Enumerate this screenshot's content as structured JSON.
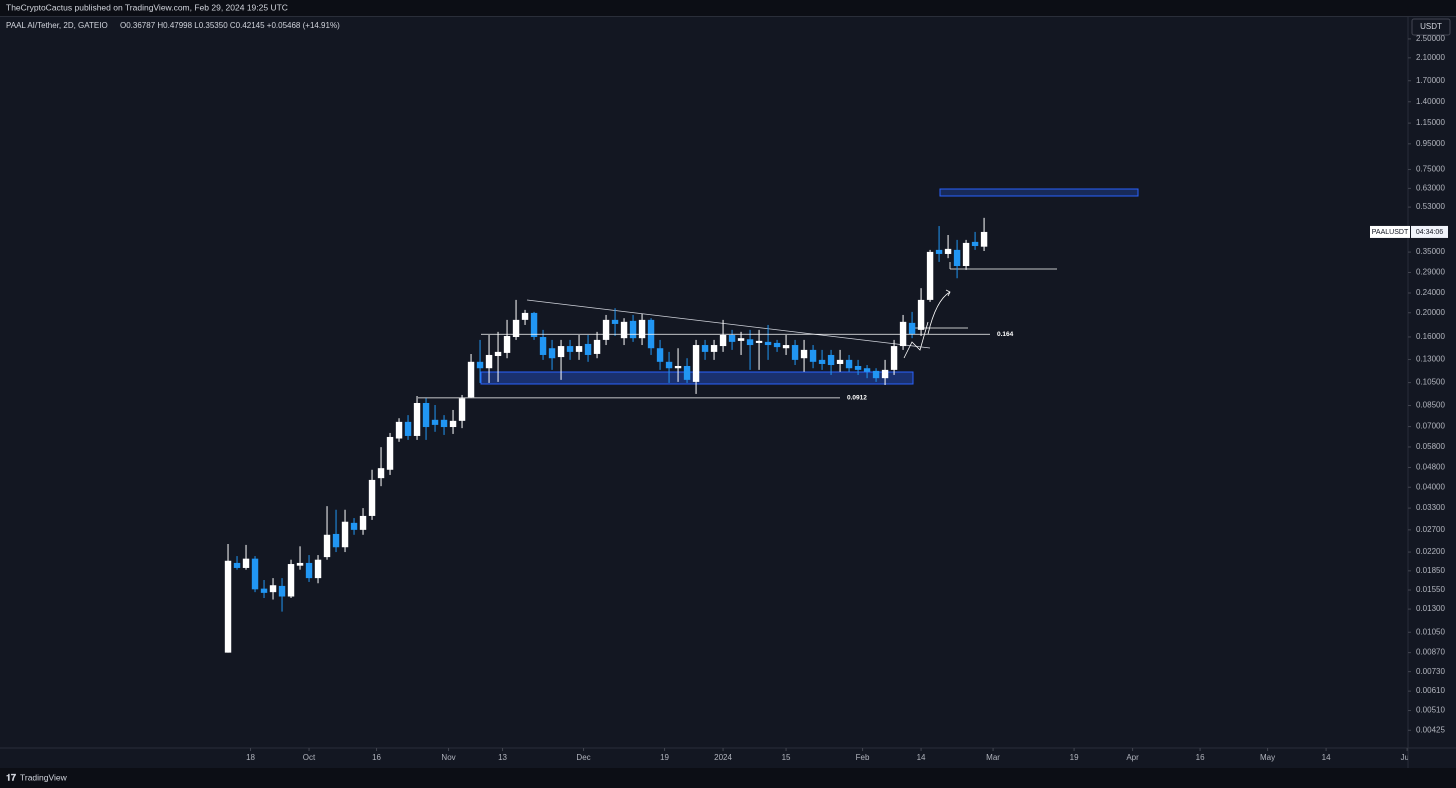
{
  "header": {
    "published": "TheCryptoCactus published on TradingView.com, Feb 29, 2024 19:25 UTC",
    "symbol": "PAAL AI/Tether, 2D, GATEIO",
    "ohlc": "O0.36787 H0.47998 L0.35350 C0.42145 +0.05468 (+14.91%)",
    "currency": "USDT",
    "brand": "TradingView"
  },
  "chart_data": {
    "type": "candlestick",
    "log_scale": true,
    "grid": false,
    "up_color": "#ffffff",
    "down_color": "#2196f3",
    "last_price_symbol": "PAALUSDT",
    "countdown": "04:34:06",
    "levels": [
      {
        "value": 0.164,
        "label": "0.164"
      },
      {
        "value": 0.0912,
        "label": "0.0912"
      }
    ],
    "xlim": [
      -38.67,
      274.2
    ],
    "xticks": [
      {
        "value": 17,
        "label": "18"
      },
      {
        "value": 30,
        "label": "Oct"
      },
      {
        "value": 45,
        "label": "16"
      },
      {
        "value": 61,
        "label": "Nov"
      },
      {
        "value": 73,
        "label": "13"
      },
      {
        "value": 91,
        "label": "Dec"
      },
      {
        "value": 109,
        "label": "19"
      },
      {
        "value": 122,
        "label": "2024"
      },
      {
        "value": 136,
        "label": "15"
      },
      {
        "value": 153,
        "label": "Feb"
      },
      {
        "value": 166,
        "label": "14"
      },
      {
        "value": 182,
        "label": "Mar"
      },
      {
        "value": 200,
        "label": "19"
      },
      {
        "value": 213,
        "label": "Apr"
      },
      {
        "value": 228,
        "label": "16"
      },
      {
        "value": 243,
        "label": "May"
      },
      {
        "value": 256,
        "label": "14"
      },
      {
        "value": 274,
        "label": "Jun"
      }
    ],
    "ylim": [
      0.00361,
      3.58
    ],
    "yticks": [
      {
        "value": 2.5,
        "label": "2.50000"
      },
      {
        "value": 2.1,
        "label": "2.10000"
      },
      {
        "value": 1.7,
        "label": "1.70000"
      },
      {
        "value": 1.4,
        "label": "1.40000"
      },
      {
        "value": 1.15,
        "label": "1.15000"
      },
      {
        "value": 0.95,
        "label": "0.95000"
      },
      {
        "value": 0.75,
        "label": "0.75000"
      },
      {
        "value": 0.63,
        "label": "0.63000"
      },
      {
        "value": 0.53,
        "label": "0.53000"
      },
      {
        "value": 0.35,
        "label": "0.35000"
      },
      {
        "value": 0.29,
        "label": "0.29000"
      },
      {
        "value": 0.24,
        "label": "0.24000"
      },
      {
        "value": 0.2,
        "label": "0.20000"
      },
      {
        "value": 0.16,
        "label": "0.16000"
      },
      {
        "value": 0.13,
        "label": "0.13000"
      },
      {
        "value": 0.105,
        "label": "0.10500"
      },
      {
        "value": 0.085,
        "label": "0.08500"
      },
      {
        "value": 0.07,
        "label": "0.07000"
      },
      {
        "value": 0.058,
        "label": "0.05800"
      },
      {
        "value": 0.048,
        "label": "0.04800"
      },
      {
        "value": 0.04,
        "label": "0.04000"
      },
      {
        "value": 0.033,
        "label": "0.03300"
      },
      {
        "value": 0.027,
        "label": "0.02700"
      },
      {
        "value": 0.022,
        "label": "0.02200"
      },
      {
        "value": 0.0185,
        "label": "0.01850"
      },
      {
        "value": 0.0155,
        "label": "0.01550"
      },
      {
        "value": 0.013,
        "label": "0.01300"
      },
      {
        "value": 0.0105,
        "label": "0.01050"
      },
      {
        "value": 0.0087,
        "label": "0.00870"
      },
      {
        "value": 0.0073,
        "label": "0.00730"
      },
      {
        "value": 0.0061,
        "label": "0.00610"
      },
      {
        "value": 0.0051,
        "label": "0.00510"
      },
      {
        "value": 0.00425,
        "label": "0.00425"
      }
    ],
    "x": [
      12,
      14,
      16,
      18,
      20,
      22,
      24,
      26,
      28,
      30,
      32,
      34,
      36,
      38,
      40,
      42,
      44,
      46,
      48,
      50,
      52,
      54,
      56,
      58,
      60,
      62,
      64,
      66,
      68,
      70,
      72,
      74,
      76,
      78,
      80,
      82,
      84,
      86,
      88,
      90,
      92,
      94,
      96,
      98,
      100,
      102,
      104,
      106,
      108,
      110,
      112,
      114,
      116,
      118,
      120,
      122,
      124,
      126,
      128,
      130,
      132,
      134,
      136,
      138,
      140,
      142,
      144,
      146,
      148,
      150,
      152,
      154,
      156,
      158,
      160,
      162,
      164,
      166,
      168,
      170,
      172,
      174,
      176,
      178,
      180
    ],
    "open": [
      0.0087,
      0.0199,
      0.019,
      0.0207,
      0.0157,
      0.0152,
      0.0161,
      0.0146,
      0.0194,
      0.0199,
      0.0173,
      0.021,
      0.026,
      0.023,
      0.0288,
      0.027,
      0.0307,
      0.0435,
      0.047,
      0.0627,
      0.0731,
      0.0642,
      0.087,
      0.0745,
      0.0745,
      0.0697,
      0.0738,
      0.0917,
      0.1272,
      0.1199,
      0.1342,
      0.1381,
      0.1599,
      0.1873,
      0.1997,
      0.1599,
      0.1442,
      0.1329,
      0.1471,
      0.1394,
      0.15,
      0.1368,
      0.1557,
      0.1873,
      0.1582,
      0.1856,
      0.1582,
      0.1873,
      0.1442,
      0.1272,
      0.1199,
      0.1224,
      0.1057,
      0.1485,
      0.1394,
      0.1471,
      0.1629,
      0.1543,
      0.1566,
      0.1514,
      0.1529,
      0.1514,
      0.1442,
      0.1485,
      0.1315,
      0.142,
      0.1295,
      0.1355,
      0.1247,
      0.1295,
      0.1224,
      0.1199,
      0.117,
      0.1094,
      0.1181,
      0.1471,
      0.1822,
      0.1708,
      0.2252,
      0.3572,
      0.344,
      0.3572,
      0.3078,
      0.3845,
      0.36787
    ],
    "high": [
      0.0237,
      0.0212,
      0.0235,
      0.0212,
      0.017,
      0.0173,
      0.0173,
      0.0205,
      0.0232,
      0.0214,
      0.0214,
      0.0336,
      0.0325,
      0.0325,
      0.0301,
      0.033,
      0.047,
      0.0579,
      0.066,
      0.0756,
      0.0778,
      0.0928,
      0.0909,
      0.0854,
      0.0778,
      0.0816,
      0.0937,
      0.1367,
      0.1557,
      0.1629,
      0.1677,
      0.1873,
      0.2252,
      0.2054,
      0.2016,
      0.1708,
      0.1557,
      0.1557,
      0.1557,
      0.1629,
      0.1629,
      0.1677,
      0.196,
      0.2085,
      0.1902,
      0.196,
      0.1979,
      0.1902,
      0.1557,
      0.1394,
      0.1442,
      0.1315,
      0.1557,
      0.1557,
      0.1557,
      0.1873,
      0.1708,
      0.1677,
      0.1708,
      0.1708,
      0.1787,
      0.1557,
      0.1629,
      0.1557,
      0.1557,
      0.1485,
      0.142,
      0.142,
      0.142,
      0.1355,
      0.1295,
      0.1235,
      0.1199,
      0.1295,
      0.1557,
      0.196,
      0.2016,
      0.2509,
      0.3572,
      0.445,
      0.4097,
      0.3917,
      0.3917,
      0.4216,
      0.47998
    ],
    "low": [
      0.0087,
      0.0187,
      0.0187,
      0.0152,
      0.0144,
      0.0142,
      0.0127,
      0.0144,
      0.0187,
      0.0167,
      0.0165,
      0.0205,
      0.022,
      0.022,
      0.0258,
      0.0258,
      0.0296,
      0.0404,
      0.0448,
      0.0608,
      0.0619,
      0.0619,
      0.0619,
      0.0667,
      0.0648,
      0.0654,
      0.069,
      0.0917,
      0.1047,
      0.1047,
      0.1057,
      0.1315,
      0.1557,
      0.1787,
      0.1557,
      0.1295,
      0.1181,
      0.1077,
      0.1295,
      0.1295,
      0.1272,
      0.1315,
      0.1485,
      0.1614,
      0.1485,
      0.1529,
      0.1485,
      0.1355,
      0.1181,
      0.1047,
      0.1057,
      0.1047,
      0.0946,
      0.1295,
      0.1295,
      0.1394,
      0.142,
      0.1355,
      0.1181,
      0.1181,
      0.1295,
      0.1394,
      0.1355,
      0.1235,
      0.116,
      0.1199,
      0.1181,
      0.1127,
      0.116,
      0.116,
      0.1127,
      0.1094,
      0.1057,
      0.1027,
      0.1127,
      0.142,
      0.1582,
      0.1614,
      0.2211,
      0.3197,
      0.3309,
      0.275,
      0.297,
      0.3572,
      0.3535
    ],
    "close": [
      0.0203,
      0.019,
      0.0207,
      0.0156,
      0.0151,
      0.0162,
      0.0146,
      0.0197,
      0.0199,
      0.0173,
      0.0205,
      0.0258,
      0.023,
      0.0291,
      0.027,
      0.0307,
      0.0428,
      0.0477,
      0.0636,
      0.0731,
      0.0642,
      0.087,
      0.0697,
      0.0711,
      0.0697,
      0.0738,
      0.0909,
      0.1272,
      0.1199,
      0.1355,
      0.1394,
      0.1614,
      0.1873,
      0.1997,
      0.1599,
      0.1355,
      0.1315,
      0.1471,
      0.1394,
      0.1471,
      0.1355,
      0.1557,
      0.1873,
      0.1804,
      0.1839,
      0.1582,
      0.1873,
      0.1442,
      0.1272,
      0.1199,
      0.1224,
      0.1077,
      0.1485,
      0.1394,
      0.1485,
      0.1629,
      0.1529,
      0.1582,
      0.1485,
      0.1543,
      0.1485,
      0.1457,
      0.1485,
      0.1295,
      0.142,
      0.1272,
      0.1247,
      0.1235,
      0.1295,
      0.1199,
      0.1181,
      0.116,
      0.1094,
      0.1181,
      0.1471,
      0.1839,
      0.1645,
      0.2252,
      0.3506,
      0.344,
      0.3605,
      0.3078,
      0.3809,
      0.3701,
      0.42145
    ]
  }
}
